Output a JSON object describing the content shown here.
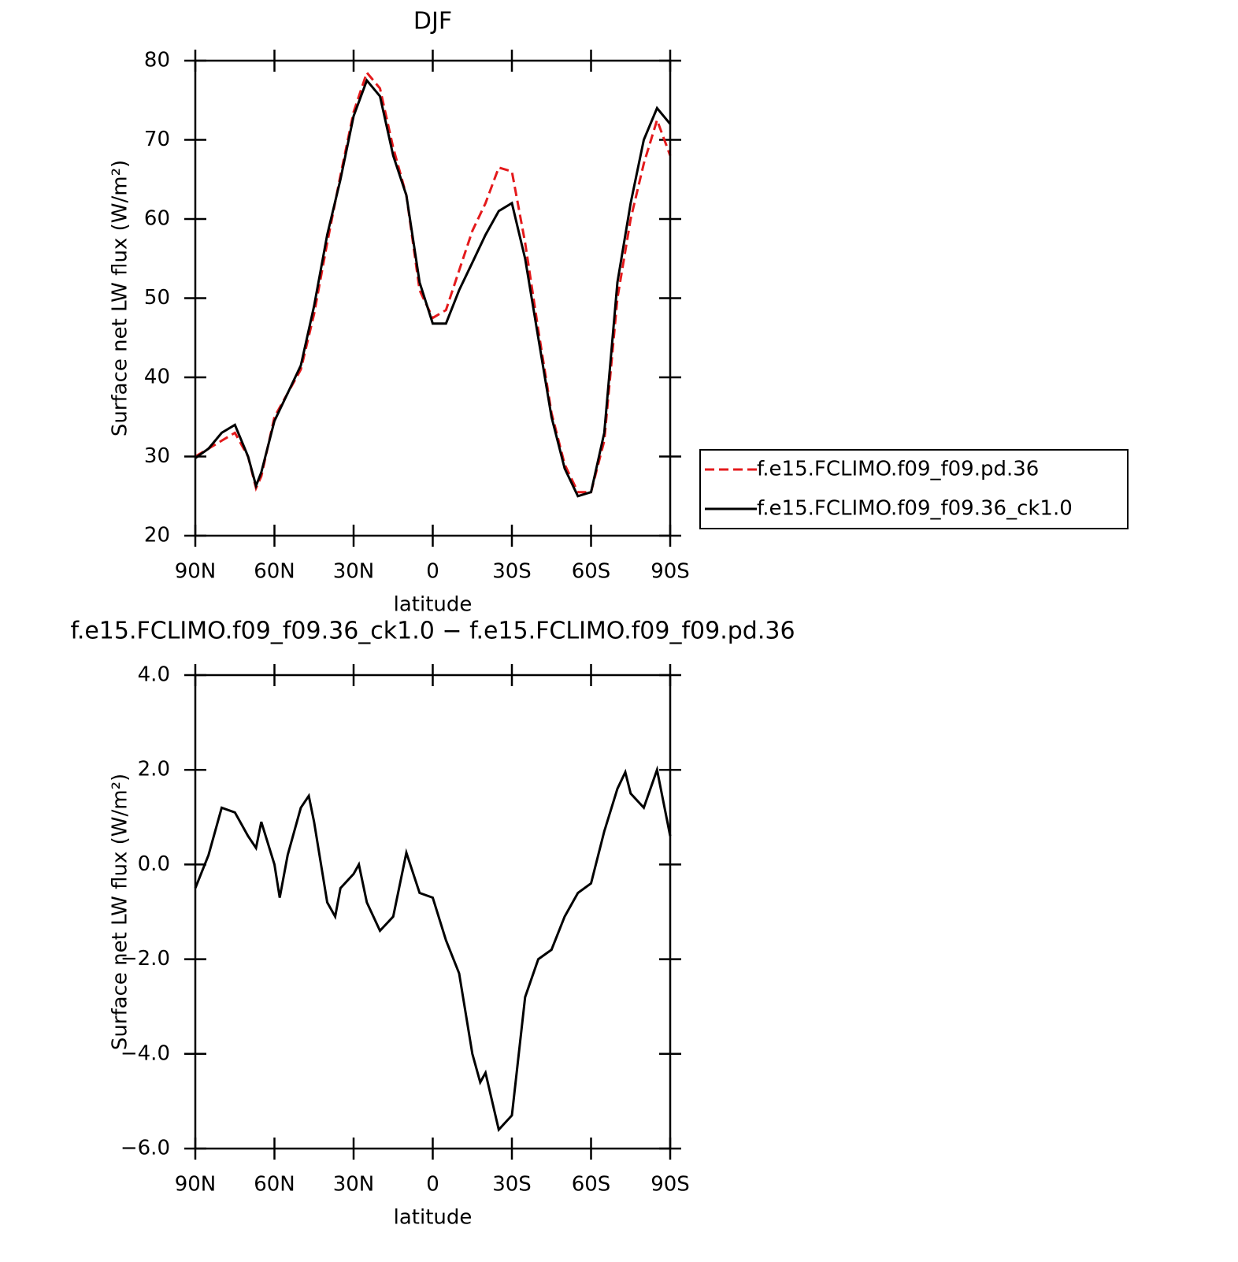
{
  "chart_data": [
    {
      "type": "line",
      "title": "DJF",
      "xlabel": "latitude",
      "ylabel": "Surface net LW flux (W/m²)",
      "x": [
        90,
        85,
        80,
        75,
        70,
        67,
        65,
        60,
        55,
        50,
        45,
        40,
        35,
        30,
        25,
        20,
        15,
        10,
        5,
        0,
        -5,
        -10,
        -15,
        -20,
        -25,
        -30,
        -35,
        -40,
        -45,
        -50,
        -55,
        -60,
        -65,
        -70,
        -75,
        -80,
        -85,
        -90
      ],
      "series": [
        {
          "name": "f.e15.FCLIMO.f09_f09.pd.36",
          "color": "#e41a1c",
          "style": "dashed",
          "values": [
            30,
            31,
            32,
            33,
            30,
            26,
            27.5,
            35,
            38,
            41,
            48,
            57,
            65.5,
            73.5,
            78.5,
            76.5,
            69,
            63,
            51,
            47.5,
            48.5,
            53.5,
            58.5,
            62,
            66.5,
            66,
            57,
            46,
            35.5,
            29,
            25.5,
            25.5,
            32,
            50,
            60,
            67,
            72.5,
            68
          ]
        },
        {
          "name": "f.e15.FCLIMO.f09_f09.36_ck1.0",
          "color": "#000000",
          "style": "solid",
          "values": [
            29.8,
            31,
            33,
            34,
            30,
            26.3,
            28,
            34.5,
            38,
            41.5,
            49,
            58,
            65,
            73,
            77.5,
            75.5,
            68,
            63,
            52,
            46.8,
            46.8,
            51,
            54.5,
            58,
            61,
            62,
            55,
            45,
            35,
            28.5,
            25,
            25.5,
            33,
            52,
            62,
            70,
            74,
            72
          ]
        }
      ],
      "xlim": [
        90,
        -90
      ],
      "xticks": [
        {
          "value": 90,
          "label": "90N"
        },
        {
          "value": 60,
          "label": "60N"
        },
        {
          "value": 30,
          "label": "30N"
        },
        0,
        {
          "value": -30,
          "label": "30S"
        },
        {
          "value": -60,
          "label": "60S"
        },
        {
          "value": -90,
          "label": "90S"
        }
      ],
      "ylim": [
        20,
        80
      ],
      "yticks": [
        20,
        30,
        40,
        50,
        60,
        70,
        80
      ],
      "legend": "right"
    },
    {
      "type": "line",
      "title": "f.e15.FCLIMO.f09_f09.36_ck1.0 − f.e15.FCLIMO.f09_f09.pd.36",
      "xlabel": "latitude",
      "ylabel": "Surface net LW flux (W/m²)",
      "x": [
        90,
        85,
        80,
        75,
        70,
        67,
        65,
        60,
        58,
        55,
        50,
        47,
        45,
        40,
        37,
        35,
        30,
        28,
        25,
        20,
        15,
        10,
        5,
        0,
        -5,
        -10,
        -15,
        -18,
        -20,
        -25,
        -30,
        -35,
        -40,
        -45,
        -50,
        -55,
        -60,
        -65,
        -70,
        -73,
        -75,
        -80,
        -85,
        -90
      ],
      "values": [
        -0.5,
        0.2,
        1.2,
        1.1,
        0.6,
        0.35,
        0.9,
        0.0,
        -0.7,
        0.2,
        1.2,
        1.45,
        0.9,
        -0.8,
        -1.1,
        -0.5,
        -0.2,
        0.0,
        -0.8,
        -1.4,
        -1.1,
        0.25,
        -0.6,
        -0.7,
        -1.6,
        -2.3,
        -4.0,
        -4.6,
        -4.4,
        -5.6,
        -5.3,
        -2.8,
        -2.0,
        -1.8,
        -1.1,
        -0.6,
        -0.4,
        0.7,
        1.6,
        1.95,
        1.5,
        1.2,
        2.0,
        0.6
      ],
      "color": "#000000",
      "xlim": [
        90,
        -90
      ],
      "xticks": [
        {
          "value": 90,
          "label": "90N"
        },
        {
          "value": 60,
          "label": "60N"
        },
        {
          "value": 30,
          "label": "30N"
        },
        0,
        {
          "value": -30,
          "label": "30S"
        },
        {
          "value": -60,
          "label": "60S"
        },
        {
          "value": -90,
          "label": "90S"
        }
      ],
      "ylim": [
        -6,
        4
      ],
      "yticks": [
        {
          "value": -6,
          "label": "−6.0"
        },
        {
          "value": -4,
          "label": "−4.0"
        },
        {
          "value": -2,
          "label": "−2.0"
        },
        {
          "value": 0,
          "label": "0.0"
        },
        {
          "value": 2,
          "label": "2.0"
        },
        {
          "value": 4,
          "label": "4.0"
        }
      ]
    }
  ]
}
